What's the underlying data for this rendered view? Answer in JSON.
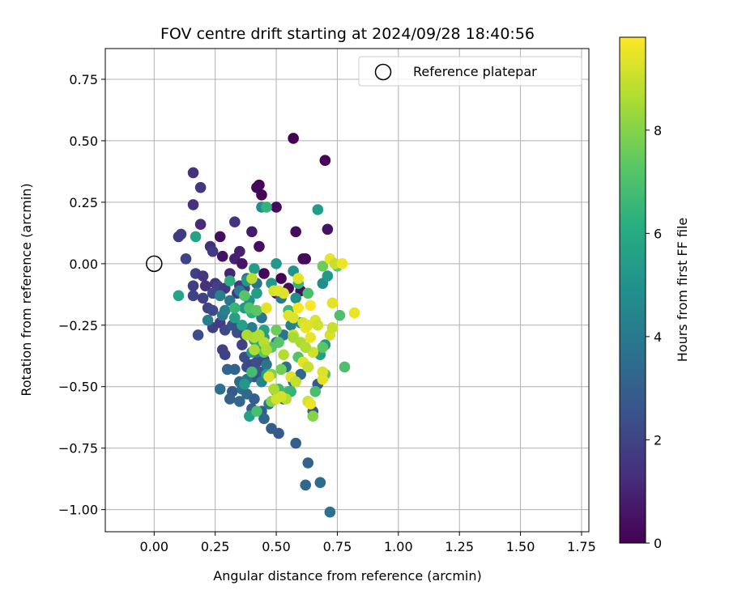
{
  "chart_data": {
    "type": "scatter",
    "title": "FOV centre drift starting at 2024/09/28 18:40:56",
    "xlabel": "Angular distance from reference (arcmin)",
    "ylabel": "Rotation from reference (arcmin)",
    "xlim": [
      -0.2,
      1.78
    ],
    "ylim": [
      -1.09,
      0.875
    ],
    "xticks": [
      0.0,
      0.25,
      0.5,
      0.75,
      1.0,
      1.25,
      1.5,
      1.75
    ],
    "xtick_labels": [
      "0.00",
      "0.25",
      "0.50",
      "0.75",
      "1.00",
      "1.25",
      "1.50",
      "1.75"
    ],
    "yticks": [
      0.75,
      0.5,
      0.25,
      0.0,
      -0.25,
      -0.5,
      -0.75,
      -1.0
    ],
    "ytick_labels": [
      "0.75",
      "0.50",
      "0.25",
      "0.00",
      "−0.25",
      "−0.50",
      "−0.75",
      "−1.00"
    ],
    "grid": true,
    "legend": {
      "position": "top-right",
      "entries": [
        "Reference platepar"
      ]
    },
    "reference_point": {
      "x": 0.0,
      "y": 0.0
    },
    "colorbar": {
      "label": "Hours from first FF file",
      "colormap": "viridis",
      "range": [
        0,
        9.8
      ],
      "ticks": [
        0,
        2,
        4,
        6,
        8
      ],
      "tick_labels": [
        "0",
        "2",
        "4",
        "6",
        "8"
      ]
    },
    "points": [
      [
        0.57,
        0.51,
        0.0
      ],
      [
        0.7,
        0.42,
        0.1
      ],
      [
        0.43,
        0.32,
        0.1
      ],
      [
        0.42,
        0.31,
        0.2
      ],
      [
        0.44,
        0.28,
        0.1
      ],
      [
        0.5,
        0.23,
        0.3
      ],
      [
        0.58,
        0.13,
        0.3
      ],
      [
        0.71,
        0.14,
        0.5
      ],
      [
        0.61,
        0.02,
        0.2
      ],
      [
        0.62,
        0.02,
        0.3
      ],
      [
        0.45,
        -0.04,
        0.2
      ],
      [
        0.52,
        -0.06,
        0.1
      ],
      [
        0.55,
        -0.1,
        0.4
      ],
      [
        0.6,
        -0.11,
        0.5
      ],
      [
        0.5,
        -0.12,
        0.3
      ],
      [
        0.51,
        -0.12,
        0.6
      ],
      [
        0.43,
        0.07,
        0.4
      ],
      [
        0.4,
        0.13,
        0.7
      ],
      [
        0.35,
        0.05,
        0.9
      ],
      [
        0.28,
        0.03,
        0.5
      ],
      [
        0.27,
        0.11,
        0.4
      ],
      [
        0.33,
        0.02,
        0.9
      ],
      [
        0.36,
        0.0,
        0.6
      ],
      [
        0.31,
        -0.04,
        1.0
      ],
      [
        0.16,
        0.37,
        1.4
      ],
      [
        0.19,
        0.31,
        1.6
      ],
      [
        0.16,
        0.24,
        1.4
      ],
      [
        0.33,
        0.17,
        1.5
      ],
      [
        0.19,
        0.16,
        1.2
      ],
      [
        0.23,
        0.07,
        1.3
      ],
      [
        0.24,
        0.05,
        1.7
      ],
      [
        0.11,
        0.12,
        1.8
      ],
      [
        0.1,
        0.11,
        1.7
      ],
      [
        0.13,
        0.02,
        2.0
      ],
      [
        0.17,
        -0.04,
        1.9
      ],
      [
        0.2,
        -0.05,
        1.6
      ],
      [
        0.16,
        -0.09,
        1.8
      ],
      [
        0.21,
        -0.09,
        1.4
      ],
      [
        0.25,
        -0.08,
        1.5
      ],
      [
        0.26,
        -0.09,
        1.9
      ],
      [
        0.29,
        -0.1,
        1.6
      ],
      [
        0.35,
        -0.09,
        1.7
      ],
      [
        0.34,
        -0.12,
        1.8
      ],
      [
        0.37,
        -0.1,
        2.0
      ],
      [
        0.16,
        -0.13,
        2.0
      ],
      [
        0.2,
        -0.14,
        1.9
      ],
      [
        0.24,
        -0.12,
        2.1
      ],
      [
        0.22,
        -0.18,
        2.0
      ],
      [
        0.24,
        -0.19,
        2.2
      ],
      [
        0.18,
        -0.29,
        2.3
      ],
      [
        0.24,
        -0.26,
        1.9
      ],
      [
        0.27,
        -0.24,
        1.8
      ],
      [
        0.29,
        -0.27,
        2.2
      ],
      [
        0.28,
        -0.35,
        1.9
      ],
      [
        0.29,
        -0.37,
        2.0
      ],
      [
        0.32,
        -0.25,
        2.5
      ],
      [
        0.34,
        -0.28,
        2.4
      ],
      [
        0.37,
        -0.29,
        2.1
      ],
      [
        0.39,
        -0.27,
        2.2
      ],
      [
        0.36,
        -0.33,
        2.0
      ],
      [
        0.37,
        -0.38,
        2.3
      ],
      [
        0.38,
        -0.42,
        2.3
      ],
      [
        0.4,
        -0.41,
        2.1
      ],
      [
        0.42,
        -0.4,
        2.4
      ],
      [
        0.41,
        -0.46,
        2.6
      ],
      [
        0.43,
        -0.44,
        2.6
      ],
      [
        0.45,
        -0.39,
        2.2
      ],
      [
        0.3,
        -0.43,
        3.2
      ],
      [
        0.33,
        -0.43,
        3.2
      ],
      [
        0.35,
        -0.48,
        3.5
      ],
      [
        0.38,
        -0.47,
        3.7
      ],
      [
        0.32,
        -0.52,
        2.8
      ],
      [
        0.31,
        -0.55,
        3.1
      ],
      [
        0.36,
        -0.51,
        3.6
      ],
      [
        0.35,
        -0.56,
        3.3
      ],
      [
        0.38,
        -0.53,
        3.4
      ],
      [
        0.41,
        -0.55,
        3.0
      ],
      [
        0.4,
        -0.59,
        3.1
      ],
      [
        0.44,
        -0.6,
        2.9
      ],
      [
        0.45,
        -0.63,
        3.3
      ],
      [
        0.48,
        -0.67,
        2.9
      ],
      [
        0.51,
        -0.69,
        2.8
      ],
      [
        0.58,
        -0.73,
        3.0
      ],
      [
        0.63,
        -0.81,
        3.1
      ],
      [
        0.62,
        -0.9,
        3.3
      ],
      [
        0.68,
        -0.89,
        3.5
      ],
      [
        0.72,
        -1.01,
        3.7
      ],
      [
        0.27,
        -0.51,
        3.7
      ],
      [
        0.5,
        -0.52,
        3.2
      ],
      [
        0.53,
        -0.55,
        3.0
      ],
      [
        0.63,
        -0.56,
        2.9
      ],
      [
        0.65,
        -0.6,
        2.7
      ],
      [
        0.67,
        -0.49,
        2.8
      ],
      [
        0.6,
        -0.45,
        3.2
      ],
      [
        0.57,
        -0.48,
        3.4
      ],
      [
        0.54,
        -0.42,
        3.6
      ],
      [
        0.5,
        -0.32,
        3.9
      ],
      [
        0.53,
        -0.29,
        3.8
      ],
      [
        0.56,
        -0.25,
        4.3
      ],
      [
        0.52,
        -0.14,
        3.9
      ],
      [
        0.44,
        -0.22,
        3.8
      ],
      [
        0.4,
        -0.26,
        4.1
      ],
      [
        0.44,
        -0.33,
        4.0
      ],
      [
        0.42,
        -0.36,
        4.1
      ],
      [
        0.46,
        -0.41,
        3.8
      ],
      [
        0.44,
        -0.48,
        4.4
      ],
      [
        0.47,
        -0.57,
        3.9
      ],
      [
        0.42,
        -0.08,
        3.8
      ],
      [
        0.38,
        -0.06,
        3.7
      ],
      [
        0.35,
        -0.11,
        4.2
      ],
      [
        0.31,
        -0.15,
        4.0
      ],
      [
        0.28,
        -0.21,
        3.9
      ],
      [
        0.27,
        -0.13,
        4.3
      ],
      [
        0.22,
        -0.23,
        4.2
      ],
      [
        0.29,
        -0.19,
        4.3
      ],
      [
        0.44,
        0.23,
        4.8
      ],
      [
        0.57,
        -0.03,
        5.0
      ],
      [
        0.58,
        -0.14,
        4.9
      ],
      [
        0.6,
        -0.24,
        5.1
      ],
      [
        0.68,
        -0.37,
        5.5
      ],
      [
        0.7,
        -0.33,
        5.2
      ],
      [
        0.69,
        -0.08,
        4.8
      ],
      [
        0.71,
        -0.05,
        5.3
      ],
      [
        0.67,
        0.22,
        5.4
      ],
      [
        0.5,
        0.0,
        5.3
      ],
      [
        0.48,
        -0.08,
        5.2
      ],
      [
        0.41,
        -0.02,
        5.4
      ],
      [
        0.38,
        -0.07,
        5.2
      ],
      [
        0.42,
        -0.12,
        5.4
      ],
      [
        0.39,
        -0.15,
        5.1
      ],
      [
        0.37,
        -0.18,
        5.3
      ],
      [
        0.33,
        -0.22,
        5.5
      ],
      [
        0.36,
        -0.25,
        5.6
      ],
      [
        0.41,
        -0.31,
        5.7
      ],
      [
        0.45,
        -0.27,
        5.6
      ],
      [
        0.4,
        -0.36,
        5.3
      ],
      [
        0.45,
        -0.3,
        5.3
      ],
      [
        0.46,
        -0.45,
        5.4
      ],
      [
        0.37,
        -0.49,
        5.2
      ],
      [
        0.39,
        -0.62,
        5.6
      ],
      [
        0.1,
        -0.13,
        5.8
      ],
      [
        0.17,
        0.11,
        5.7
      ],
      [
        0.46,
        0.23,
        6.4
      ],
      [
        0.31,
        -0.07,
        6.2
      ],
      [
        0.33,
        -0.18,
        6.5
      ],
      [
        0.4,
        -0.2,
        6.3
      ],
      [
        0.43,
        -0.32,
        6.2
      ],
      [
        0.4,
        -0.44,
        6.8
      ],
      [
        0.42,
        -0.6,
        6.9
      ],
      [
        0.51,
        -0.51,
        6.6
      ],
      [
        0.55,
        -0.52,
        6.8
      ],
      [
        0.56,
        -0.52,
        6.5
      ],
      [
        0.63,
        -0.42,
        6.8
      ],
      [
        0.59,
        -0.38,
        7.1
      ],
      [
        0.62,
        -0.34,
        6.8
      ],
      [
        0.55,
        -0.19,
        6.6
      ],
      [
        0.59,
        -0.08,
        6.4
      ],
      [
        0.63,
        -0.12,
        6.9
      ],
      [
        0.69,
        -0.34,
        7.3
      ],
      [
        0.66,
        -0.52,
        6.9
      ],
      [
        0.7,
        -0.45,
        7.2
      ],
      [
        0.78,
        -0.42,
        7.0
      ],
      [
        0.76,
        -0.21,
        7.0
      ],
      [
        0.75,
        -0.01,
        7.3
      ],
      [
        0.69,
        -0.01,
        7.6
      ],
      [
        0.37,
        -0.13,
        7.2
      ],
      [
        0.39,
        -0.18,
        7.1
      ],
      [
        0.42,
        -0.19,
        7.3
      ],
      [
        0.45,
        -0.36,
        7.2
      ],
      [
        0.48,
        -0.34,
        7.2
      ],
      [
        0.5,
        -0.27,
        7.6
      ],
      [
        0.51,
        -0.32,
        7.2
      ],
      [
        0.52,
        -0.43,
        7.7
      ],
      [
        0.48,
        -0.56,
        8.0
      ],
      [
        0.48,
        -0.45,
        7.9
      ],
      [
        0.65,
        -0.62,
        8.0
      ],
      [
        0.4,
        -0.06,
        8.8
      ],
      [
        0.41,
        -0.3,
        8.7
      ],
      [
        0.43,
        -0.29,
        8.7
      ],
      [
        0.45,
        -0.32,
        8.8
      ],
      [
        0.46,
        -0.18,
        9.4
      ],
      [
        0.49,
        -0.11,
        9.2
      ],
      [
        0.51,
        -0.11,
        9.4
      ],
      [
        0.53,
        -0.12,
        9.3
      ],
      [
        0.55,
        -0.21,
        9.4
      ],
      [
        0.57,
        -0.29,
        9.1
      ],
      [
        0.57,
        -0.22,
        9.3
      ],
      [
        0.59,
        -0.06,
        9.4
      ],
      [
        0.59,
        -0.18,
        9.7
      ],
      [
        0.61,
        -0.24,
        9.2
      ],
      [
        0.62,
        -0.26,
        9.5
      ],
      [
        0.63,
        -0.25,
        9.4
      ],
      [
        0.64,
        -0.17,
        9.8
      ],
      [
        0.64,
        -0.3,
        9.5
      ],
      [
        0.65,
        -0.36,
        9.1
      ],
      [
        0.61,
        -0.4,
        9.4
      ],
      [
        0.63,
        -0.42,
        9.0
      ],
      [
        0.66,
        -0.23,
        9.3
      ],
      [
        0.67,
        -0.25,
        9.1
      ],
      [
        0.69,
        -0.44,
        9.3
      ],
      [
        0.69,
        -0.47,
        9.4
      ],
      [
        0.72,
        -0.29,
        9.2
      ],
      [
        0.73,
        -0.26,
        9.0
      ],
      [
        0.72,
        0.02,
        9.5
      ],
      [
        0.74,
        0.0,
        9.0
      ],
      [
        0.77,
        0.0,
        9.6
      ],
      [
        0.73,
        -0.16,
        9.4
      ],
      [
        0.82,
        -0.2,
        9.5
      ],
      [
        0.54,
        -0.55,
        8.7
      ],
      [
        0.5,
        -0.55,
        9.1
      ],
      [
        0.52,
        -0.54,
        9.2
      ],
      [
        0.49,
        -0.51,
        8.6
      ],
      [
        0.47,
        -0.46,
        9.3
      ],
      [
        0.56,
        -0.46,
        9.4
      ],
      [
        0.58,
        -0.48,
        8.9
      ],
      [
        0.63,
        -0.56,
        9.2
      ],
      [
        0.64,
        -0.57,
        9.5
      ],
      [
        0.41,
        -0.35,
        8.6
      ],
      [
        0.38,
        -0.29,
        8.6
      ],
      [
        0.46,
        -0.35,
        8.6
      ],
      [
        0.53,
        -0.37,
        8.7
      ],
      [
        0.57,
        -0.3,
        8.5
      ],
      [
        0.6,
        -0.32,
        8.6
      ],
      [
        0.62,
        -0.34,
        8.7
      ]
    ]
  }
}
